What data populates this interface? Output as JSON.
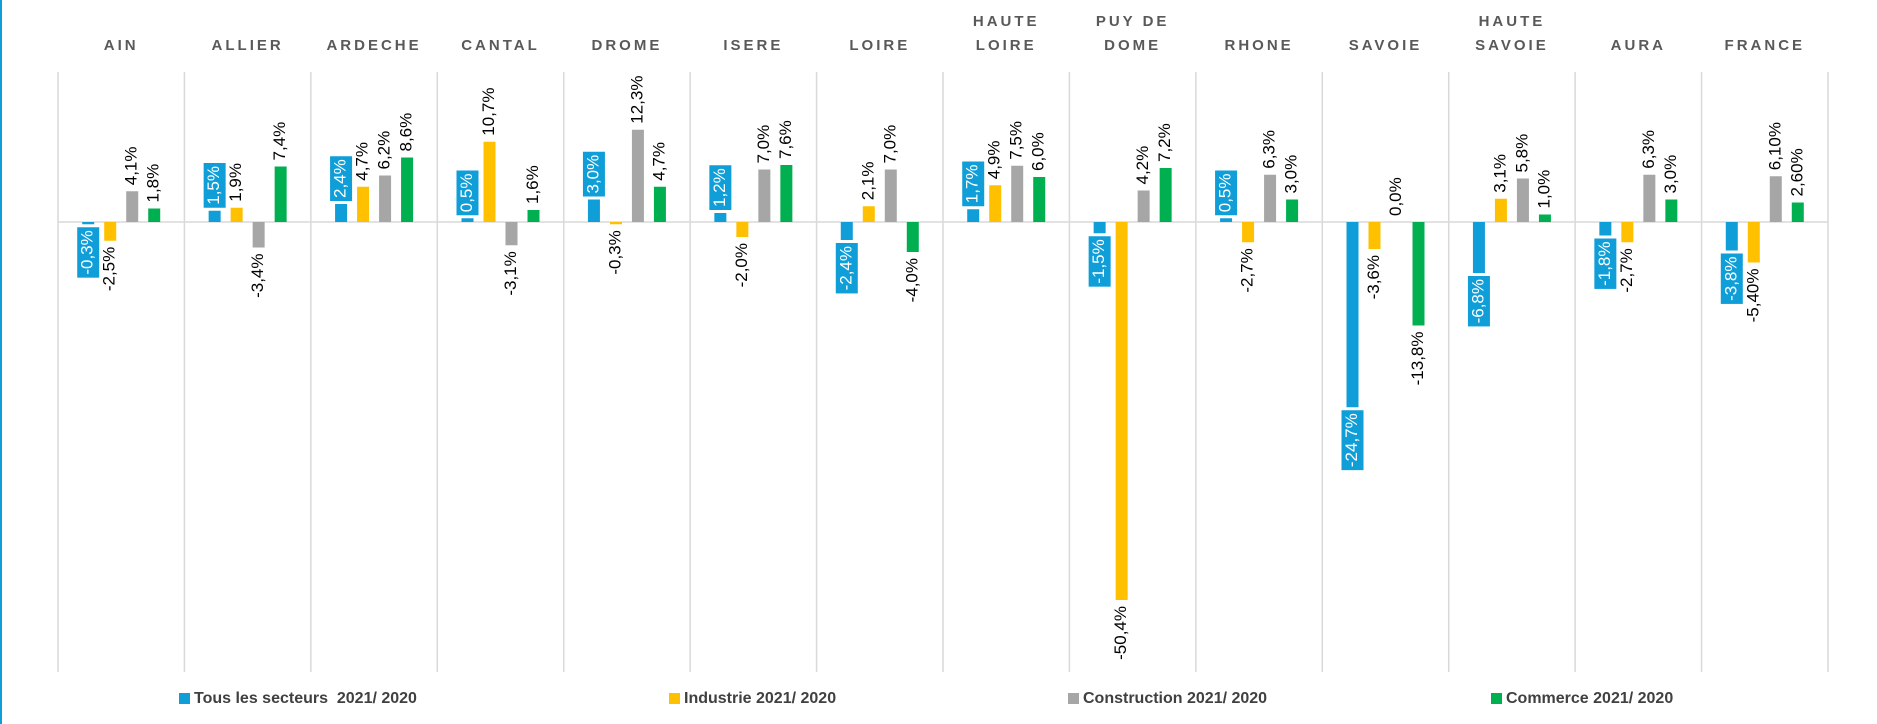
{
  "chart_data": {
    "type": "bar",
    "categories": [
      "AIN",
      "ALLIER",
      "ARDECHE",
      "CANTAL",
      "DROME",
      "ISERE",
      "LOIRE",
      "HAUTE\nLOIRE",
      "PUY DE\nDOME",
      "RHONE",
      "SAVOIE",
      "HAUTE\nSAVOIE",
      "AURA",
      "FRANCE"
    ],
    "ylim": [
      -60,
      20
    ],
    "series": [
      {
        "name": "Tous les secteurs  2021/ 2020",
        "color": "#0f9ed8",
        "values": [
          -0.3,
          1.5,
          2.4,
          0.5,
          3.0,
          1.2,
          -2.4,
          1.7,
          -1.5,
          0.5,
          -24.7,
          -6.8,
          -1.8,
          -3.8
        ],
        "value_labels": [
          "-0,3%",
          "1,5%",
          "2,4%",
          "0,5%",
          "3,0%",
          "1,2%",
          "-2,4%",
          "1,7%",
          "-1,5%",
          "0,5%",
          "-24,7%",
          "-6,8%",
          "-1,8%",
          "-3,8%"
        ]
      },
      {
        "name": "Industrie 2021/ 2020",
        "color": "#ffc000",
        "values": [
          -2.5,
          1.9,
          4.7,
          10.7,
          -0.3,
          -2.0,
          2.1,
          4.9,
          -50.4,
          -2.7,
          -3.6,
          3.1,
          -2.7,
          -5.4
        ],
        "value_labels": [
          "-2,5%",
          "1,9%",
          "4,7%",
          "10,7%",
          "-0,3%",
          "-2,0%",
          "2,1%",
          "4,9%",
          "-50,4%",
          "-2,7%",
          "-3,6%",
          "3,1%",
          "-2,7%",
          "-5,40%"
        ]
      },
      {
        "name": "Construction 2021/ 2020",
        "color": "#a6a6a6",
        "values": [
          4.1,
          -3.4,
          6.2,
          -3.1,
          12.3,
          7.0,
          7.0,
          7.5,
          4.2,
          6.3,
          0.0,
          5.8,
          6.3,
          6.1
        ],
        "value_labels": [
          "4,1%",
          "-3,4%",
          "6,2%",
          "-3,1%",
          "12,3%",
          "7,0%",
          "7,0%",
          "7,5%",
          "4,2%",
          "6,3%",
          "0,0%",
          "5,8%",
          "6,3%",
          "6,10%"
        ]
      },
      {
        "name": "Commerce 2021/ 2020",
        "color": "#00b050",
        "values": [
          1.8,
          7.4,
          8.6,
          1.6,
          4.7,
          7.6,
          -4.0,
          6.0,
          7.2,
          3.0,
          -13.8,
          1.0,
          3.0,
          2.6
        ],
        "value_labels": [
          "1,8%",
          "7,4%",
          "8,6%",
          "1,6%",
          "4,7%",
          "7,6%",
          "-4,0%",
          "6,0%",
          "7,2%",
          "3,0%",
          "-13,8%",
          "1,0%",
          "3,0%",
          "2,60%"
        ]
      }
    ]
  }
}
